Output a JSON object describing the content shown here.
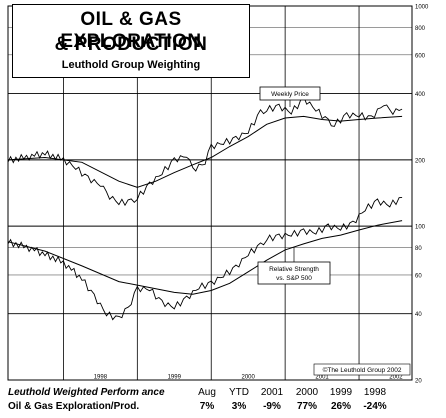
{
  "title": {
    "line1": "OIL & GAS EXPLORATION",
    "line2": "& PRODUCTION",
    "subtitle": "Leuthold Group Weighting"
  },
  "chart_data": {
    "type": "line",
    "y_scale": "log",
    "ylim": [
      20,
      1000
    ],
    "y_ticks": [
      "1000",
      "800",
      "600",
      "400",
      "200",
      "100",
      "80",
      "60",
      "40",
      "20"
    ],
    "x_ticks": [
      "1998",
      "1999",
      "2000",
      "2001",
      "2002"
    ],
    "series": [
      {
        "name": "Weekly Price",
        "x": [
          "1997-04",
          "1997-07",
          "1997-10",
          "1998-01",
          "1998-03",
          "1998-05",
          "1998-07",
          "1998-08",
          "1998-10",
          "1998-12",
          "1999-01",
          "1999-03",
          "1999-05",
          "1999-07",
          "1999-09",
          "1999-10",
          "1999-12",
          "2000-01",
          "2000-03",
          "2000-05",
          "2000-07",
          "2000-09",
          "2000-10",
          "2000-12",
          "2001-02",
          "2001-04",
          "2001-06",
          "2001-08",
          "2001-09",
          "2001-11",
          "2002-01",
          "2002-03",
          "2002-05",
          "2002-06",
          "2002-08"
        ],
        "values": [
          200,
          205,
          215,
          200,
          185,
          165,
          155,
          140,
          128,
          130,
          135,
          155,
          175,
          200,
          210,
          180,
          195,
          230,
          240,
          250,
          270,
          330,
          340,
          350,
          330,
          380,
          340,
          300,
          290,
          320,
          320,
          310,
          360,
          330,
          340
        ]
      },
      {
        "name": "",
        "x": [
          "1997-04",
          "1997-10",
          "1998-04",
          "1998-10",
          "1999-01",
          "1999-04",
          "1999-07",
          "1999-10",
          "2000-01",
          "2000-04",
          "2000-07",
          "2000-10",
          "2001-01",
          "2001-04",
          "2001-07",
          "2001-10",
          "2002-01",
          "2002-04",
          "2002-08"
        ],
        "values": [
          200,
          205,
          195,
          160,
          150,
          160,
          175,
          190,
          205,
          230,
          255,
          290,
          310,
          315,
          305,
          300,
          305,
          310,
          315
        ]
      },
      {
        "name": "Relative Strength vs. S&P 500",
        "x": [
          "1997-04",
          "1997-07",
          "1997-10",
          "1998-01",
          "1998-04",
          "1998-06",
          "1998-08",
          "1998-10",
          "1998-12",
          "1999-01",
          "1999-03",
          "1999-05",
          "1999-07",
          "1999-09",
          "1999-11",
          "2000-01",
          "2000-03",
          "2000-05",
          "2000-07",
          "2000-09",
          "2000-10",
          "2000-12",
          "2001-02",
          "2001-04",
          "2001-06",
          "2001-08",
          "2001-10",
          "2001-12",
          "2002-02",
          "2002-04",
          "2002-06",
          "2002-08"
        ],
        "values": [
          85,
          80,
          75,
          68,
          58,
          48,
          40,
          38,
          45,
          52,
          52,
          45,
          43,
          47,
          53,
          55,
          60,
          65,
          75,
          82,
          88,
          90,
          92,
          95,
          94,
          100,
          98,
          103,
          120,
          130,
          125,
          135
        ]
      },
      {
        "name": "",
        "x": [
          "1997-04",
          "1997-10",
          "1998-04",
          "1998-10",
          "1999-04",
          "1999-07",
          "1999-10",
          "2000-01",
          "2000-04",
          "2000-07",
          "2000-10",
          "2001-01",
          "2001-04",
          "2001-07",
          "2001-10",
          "2002-01",
          "2002-04",
          "2002-08"
        ],
        "values": [
          85,
          77,
          66,
          56,
          52,
          50,
          49,
          51,
          55,
          62,
          70,
          78,
          83,
          88,
          91,
          96,
          101,
          106
        ]
      }
    ],
    "annotations": [
      "Weekly Price",
      "Relative Strength",
      "vs. S&P 500",
      "©The Leuthold Group 2002"
    ]
  },
  "performance_table": {
    "header_label": "Leuthold Weighted Perform ance",
    "columns": [
      "Aug",
      "YTD",
      "2001",
      "2000",
      "1999",
      "1998"
    ],
    "row_label": "Oil & Gas Exploration/Prod.",
    "values": [
      "7%",
      "3%",
      "-9%",
      "77%",
      "26%",
      "-24%"
    ]
  }
}
